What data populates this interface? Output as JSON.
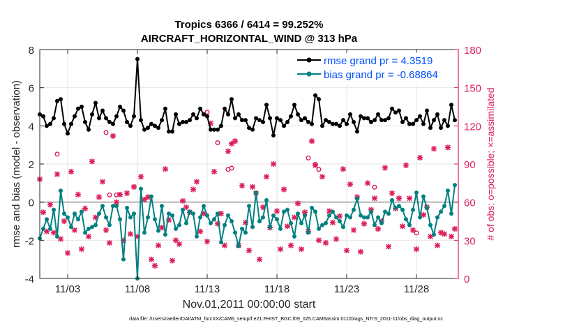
{
  "chart_data": {
    "type": "line",
    "title": "Tropics 6366 / 6414 = 99.252%",
    "subtitle": "AIRCRAFT_HORIZONTAL_WIND @ 313 hPa",
    "xlabel": "Nov.01,2011 00:00:00 start",
    "ylabel": "rmse and bias (model - observation)",
    "y2label": "# of obs: o=possible; ×=assimilated",
    "footer": "data file: /Users/raeder/DAI/ATM_forcXX/CAM6_setup/f.e21.FHIST_BGC.f09_025.CAM6assim.011/Diags_NTrS_2011-11/obs_diag_output.nc",
    "xlim": [
      1,
      31
    ],
    "ylim": [
      -4,
      8
    ],
    "y2lim": [
      0,
      180
    ],
    "xticks": [
      3,
      8,
      13,
      18,
      23,
      28
    ],
    "xtick_labels": [
      "11/03",
      "11/08",
      "11/13",
      "11/18",
      "11/23",
      "11/28"
    ],
    "yticks": [
      -4,
      -2,
      0,
      2,
      4,
      6,
      8
    ],
    "ytick_labels": [
      "-4",
      "-2",
      "0",
      "2",
      "4",
      "6",
      "8"
    ],
    "y2ticks": [
      0,
      30,
      60,
      90,
      120,
      150,
      180
    ],
    "y2tick_labels": [
      "0",
      "30",
      "60",
      "90",
      "120",
      "150",
      "180"
    ],
    "grid": true,
    "legend_position": "top-right",
    "zero_line": true,
    "colors": {
      "rmse": "#000000",
      "bias": "#008080",
      "obs": "#dc1e5a",
      "zero": "#b4b4b4",
      "legend_text": "#0050ff"
    },
    "series": [
      {
        "name": "rmse grand pr = 4.3519",
        "color": "#000000",
        "x": [
          1.0,
          1.25,
          1.5,
          1.75,
          2.0,
          2.25,
          2.5,
          2.75,
          3.0,
          3.25,
          3.5,
          3.75,
          4.0,
          4.25,
          4.5,
          4.75,
          5.0,
          5.25,
          5.5,
          5.75,
          6.0,
          6.25,
          6.5,
          6.75,
          7.0,
          7.25,
          7.5,
          7.75,
          8.0,
          8.25,
          8.5,
          8.75,
          9.0,
          9.25,
          9.5,
          9.75,
          10.0,
          10.25,
          10.5,
          10.75,
          11.0,
          11.25,
          11.5,
          11.75,
          12.0,
          12.25,
          12.5,
          12.75,
          13.0,
          13.25,
          13.5,
          13.75,
          14.0,
          14.25,
          14.5,
          14.75,
          15.0,
          15.25,
          15.5,
          15.75,
          16.0,
          16.25,
          16.5,
          16.75,
          17.0,
          17.25,
          17.5,
          17.75,
          18.0,
          18.25,
          18.5,
          18.75,
          19.0,
          19.25,
          19.5,
          19.75,
          20.0,
          20.25,
          20.5,
          20.75,
          21.0,
          21.25,
          21.5,
          21.75,
          22.0,
          22.25,
          22.5,
          22.75,
          23.0,
          23.25,
          23.5,
          23.75,
          24.0,
          24.25,
          24.5,
          24.75,
          25.0,
          25.25,
          25.5,
          25.75,
          26.0,
          26.25,
          26.5,
          26.75,
          27.0,
          27.25,
          27.5,
          27.75,
          28.0,
          28.25,
          28.5,
          28.75,
          29.0,
          29.25,
          29.5,
          29.75,
          30.0,
          30.25,
          30.5,
          30.75
        ],
        "values": [
          4.6,
          4.5,
          4.0,
          4.1,
          4.4,
          5.3,
          5.4,
          4.1,
          3.6,
          4.1,
          4.5,
          4.9,
          5.0,
          4.2,
          3.8,
          4.6,
          5.2,
          4.4,
          4.8,
          4.4,
          4.2,
          4.1,
          4.5,
          5.0,
          4.8,
          4.2,
          4.0,
          4.5,
          7.5,
          4.3,
          3.8,
          3.9,
          4.1,
          4.0,
          3.9,
          4.3,
          4.9,
          3.7,
          3.7,
          4.6,
          4.1,
          4.2,
          4.2,
          4.3,
          4.6,
          4.4,
          4.9,
          4.6,
          4.5,
          3.8,
          3.8,
          3.8,
          4.0,
          4.9,
          4.6,
          5.4,
          4.4,
          4.6,
          4.3,
          4.3,
          3.9,
          3.8,
          4.4,
          4.3,
          4.2,
          5.1,
          4.4,
          3.5,
          4.4,
          4.3,
          4.0,
          4.2,
          4.5,
          5.1,
          4.6,
          4.3,
          4.4,
          4.2,
          4.1,
          5.6,
          5.4,
          4.0,
          4.3,
          4.2,
          4.1,
          4.1,
          4.0,
          4.3,
          4.1,
          4.6,
          4.2,
          3.7,
          4.5,
          4.4,
          4.4,
          4.2,
          4.3,
          4.6,
          4.3,
          4.3,
          4.4,
          4.9,
          4.7,
          4.8,
          4.2,
          4.4,
          4.1,
          4.1,
          4.3,
          4.5,
          4.1,
          4.8,
          3.9,
          4.3,
          4.6,
          3.9,
          4.3,
          4.0,
          5.1,
          4.3
        ]
      },
      {
        "name": "bias grand pr = -0.68864",
        "color": "#008080",
        "x": [
          1.0,
          1.25,
          1.5,
          1.75,
          2.0,
          2.25,
          2.5,
          2.75,
          3.0,
          3.25,
          3.5,
          3.75,
          4.0,
          4.25,
          4.5,
          4.75,
          5.0,
          5.25,
          5.5,
          5.75,
          6.0,
          6.25,
          6.5,
          6.75,
          7.0,
          7.25,
          7.5,
          7.75,
          8.0,
          8.25,
          8.5,
          8.75,
          9.0,
          9.25,
          9.5,
          9.75,
          10.0,
          10.25,
          10.5,
          10.75,
          11.0,
          11.25,
          11.5,
          11.75,
          12.0,
          12.25,
          12.5,
          12.75,
          13.0,
          13.25,
          13.5,
          13.75,
          14.0,
          14.25,
          14.5,
          14.75,
          15.0,
          15.25,
          15.5,
          15.75,
          16.0,
          16.25,
          16.5,
          16.75,
          17.0,
          17.25,
          17.5,
          17.75,
          18.0,
          18.25,
          18.5,
          18.75,
          19.0,
          19.25,
          19.5,
          19.75,
          20.0,
          20.25,
          20.5,
          20.75,
          21.0,
          21.25,
          21.5,
          21.75,
          22.0,
          22.25,
          22.5,
          22.75,
          23.0,
          23.25,
          23.5,
          23.75,
          24.0,
          24.25,
          24.5,
          24.75,
          25.0,
          25.25,
          25.5,
          25.75,
          26.0,
          26.25,
          26.5,
          26.75,
          27.0,
          27.25,
          27.5,
          27.75,
          28.0,
          28.25,
          28.5,
          28.75,
          29.0,
          29.25,
          29.5,
          29.75,
          30.0,
          30.25,
          30.5,
          30.75
        ],
        "values": [
          -1.9,
          -1.4,
          -0.9,
          -1.4,
          -0.4,
          -1.8,
          0.6,
          -0.6,
          -0.8,
          -1.3,
          -0.6,
          -0.9,
          -0.5,
          -1.6,
          -1.4,
          -1.3,
          -1.2,
          -0.6,
          -0.2,
          -0.8,
          -1.2,
          -0.2,
          -0.2,
          -0.9,
          -3.0,
          -0.3,
          -0.8,
          -0.6,
          -4.0,
          0.7,
          -1.6,
          -0.8,
          0.3,
          -0.9,
          -1.5,
          -0.2,
          -1.7,
          -0.6,
          -0.7,
          -1.4,
          -1.2,
          -0.4,
          -1.1,
          -0.5,
          -0.6,
          -1.8,
          -0.8,
          -0.2,
          -0.7,
          -1.1,
          -0.9,
          -0.6,
          -2.1,
          -1.2,
          -0.7,
          -1.0,
          -1.6,
          -2.3,
          -1.4,
          -1.6,
          -0.2,
          -1.3,
          0.5,
          -1.0,
          -0.8,
          0.1,
          -1.3,
          -0.7,
          -0.9,
          -1.4,
          -0.5,
          -0.4,
          -1.1,
          -1.8,
          -0.6,
          -1.1,
          -0.7,
          -1.6,
          -0.3,
          -0.5,
          -1.4,
          -1.2,
          -1.1,
          -0.7,
          -0.5,
          -0.8,
          -1.0,
          -1.3,
          -0.7,
          -0.8,
          -0.4,
          0.2,
          -0.7,
          -0.8,
          -0.8,
          -0.5,
          -1.2,
          -0.8,
          -1.1,
          -0.5,
          -0.6,
          0.1,
          -0.3,
          -0.2,
          -0.4,
          -0.9,
          -1.2,
          -0.4,
          0.5,
          -0.8,
          0.3,
          -0.3,
          -1.2,
          -1.7,
          -0.8,
          -0.5,
          -0.2,
          0.6,
          -0.6,
          0.9
        ]
      }
    ],
    "obs_assimilated": {
      "name": "# of obs assimilated",
      "marker": "×",
      "x": [
        1.0,
        1.25,
        1.5,
        1.75,
        2.0,
        2.25,
        2.5,
        2.75,
        3.0,
        3.25,
        3.5,
        3.75,
        4.0,
        4.25,
        4.5,
        4.75,
        5.0,
        5.25,
        5.5,
        5.75,
        6.0,
        6.25,
        6.5,
        6.75,
        7.0,
        7.25,
        7.5,
        7.75,
        8.0,
        8.25,
        8.5,
        8.75,
        9.0,
        9.25,
        9.5,
        9.75,
        10.0,
        10.25,
        10.5,
        10.75,
        11.0,
        11.25,
        11.5,
        11.75,
        12.0,
        12.25,
        12.5,
        12.75,
        13.0,
        13.25,
        13.5,
        13.75,
        14.0,
        14.25,
        14.5,
        14.75,
        15.0,
        15.25,
        15.5,
        15.75,
        16.0,
        16.25,
        16.5,
        16.75,
        17.0,
        17.25,
        17.5,
        17.75,
        18.0,
        18.25,
        18.5,
        18.75,
        19.0,
        19.25,
        19.5,
        19.75,
        20.0,
        20.25,
        20.5,
        20.75,
        21.0,
        21.25,
        21.5,
        21.75,
        22.0,
        22.25,
        22.5,
        22.75,
        23.0,
        23.25,
        23.5,
        23.75,
        24.0,
        24.25,
        24.5,
        24.75,
        25.0,
        25.25,
        25.5,
        25.75,
        26.0,
        26.25,
        26.5,
        26.75,
        27.0,
        27.25,
        27.5,
        27.75,
        28.0,
        28.25,
        28.5,
        28.75,
        29.0,
        29.25,
        29.5,
        29.75,
        30.0,
        30.25,
        30.5,
        30.75
      ],
      "values": [
        78,
        52,
        37,
        58,
        36,
        82,
        31,
        45,
        20,
        84,
        38,
        66,
        23,
        55,
        33,
        92,
        48,
        64,
        76,
        38,
        28,
        112,
        60,
        66,
        30,
        67,
        35,
        72,
        33,
        80,
        62,
        64,
        15,
        10,
        26,
        40,
        86,
        46,
        14,
        30,
        27,
        61,
        56,
        52,
        70,
        76,
        37,
        51,
        29,
        122,
        84,
        43,
        51,
        26,
        100,
        106,
        108,
        26,
        73,
        44,
        22,
        72,
        67,
        15,
        56,
        80,
        40,
        90,
        53,
        23,
        70,
        41,
        26,
        48,
        59,
        23,
        52,
        37,
        108,
        89,
        30,
        80,
        28,
        53,
        44,
        31,
        49,
        86,
        22,
        74,
        38,
        64,
        21,
        43,
        75,
        54,
        63,
        39,
        45,
        87,
        25,
        67,
        55,
        63,
        41,
        89,
        63,
        38,
        23,
        95,
        50,
        56,
        33,
        102,
        26,
        36,
        35,
        103,
        33,
        39
      ]
    },
    "obs_possible": {
      "name": "# of obs possible",
      "marker": "o",
      "x": [
        2.25,
        5.75,
        6.0,
        6.5,
        13.0,
        13.75,
        14.5,
        14.75,
        20.25,
        20.75,
        21.0,
        25.0,
        28.0
      ],
      "values": [
        95,
        112,
        63,
        63,
        128,
        104,
        83,
        84,
        92,
        87,
        83,
        69,
        33
      ]
    }
  }
}
